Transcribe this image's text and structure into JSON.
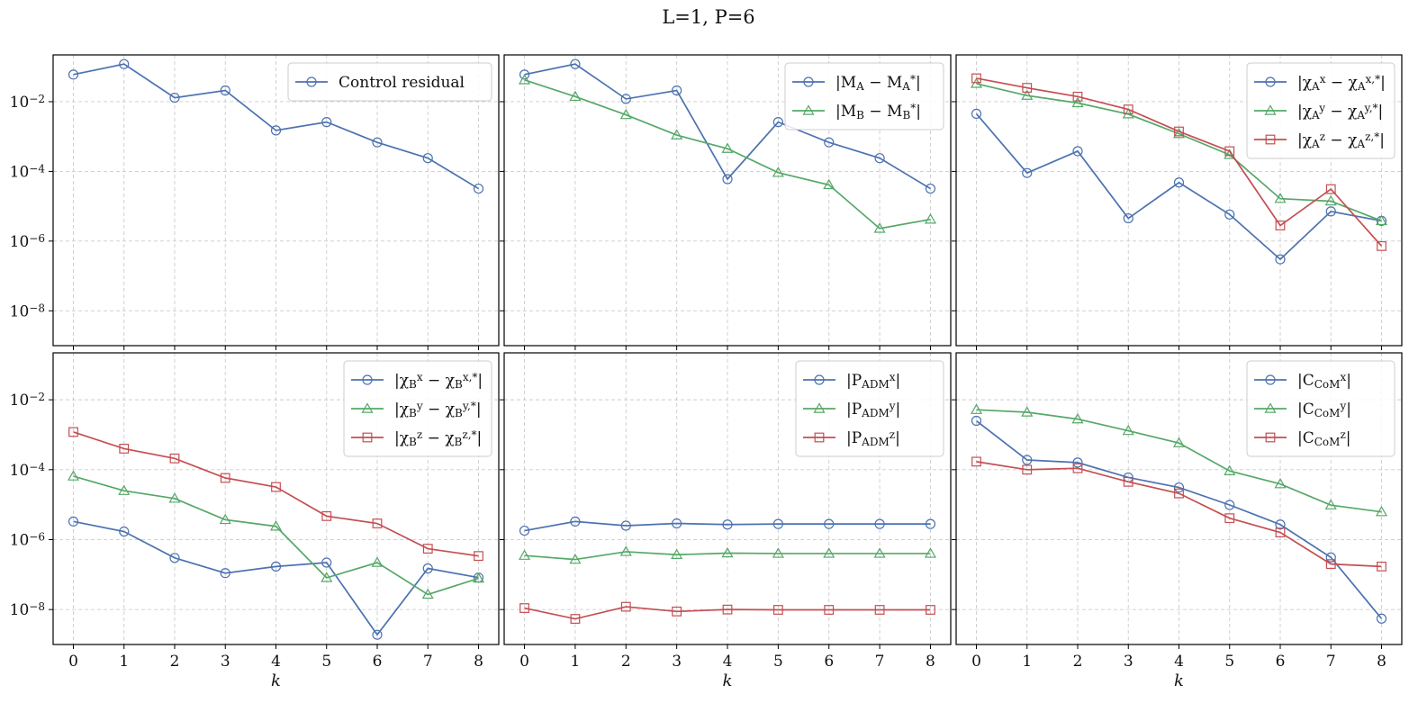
{
  "figure": {
    "title": "L=1, P=6"
  },
  "chart_data": [
    {
      "type": "line",
      "yscale": "log",
      "ylim": [
        1e-09,
        0.22
      ],
      "xlim": [
        -0.4,
        8.4
      ],
      "x": [
        0,
        1,
        2,
        3,
        4,
        5,
        6,
        7,
        8
      ],
      "xlabel": "",
      "xtick_labels": [],
      "ytick_labels": [
        "10^-2",
        "10^-4",
        "10^-6",
        "10^-8"
      ],
      "grid": true,
      "legend_position": "top-right",
      "series": [
        {
          "name": "Control residual",
          "color": "#4c72b0",
          "marker": "circle",
          "values": [
            0.06,
            0.12,
            0.013,
            0.021,
            0.0015,
            0.0026,
            0.00068,
            0.00024,
            3.2e-05
          ]
        }
      ]
    },
    {
      "type": "line",
      "yscale": "log",
      "ylim": [
        1e-09,
        0.22
      ],
      "xlim": [
        -0.4,
        8.4
      ],
      "x": [
        0,
        1,
        2,
        3,
        4,
        5,
        6,
        7,
        8
      ],
      "xlabel": "",
      "xtick_labels": [],
      "ytick_labels": [],
      "grid": true,
      "legend_position": "top-right",
      "series": [
        {
          "name": "|M_A − M_A^*|",
          "color": "#4c72b0",
          "marker": "circle",
          "values": [
            0.06,
            0.12,
            0.012,
            0.021,
            6e-05,
            0.0026,
            0.00068,
            0.00024,
            3.2e-05
          ]
        },
        {
          "name": "|M_B − M_B^*|",
          "color": "#55a868",
          "marker": "triangle",
          "values": [
            0.042,
            0.014,
            0.0042,
            0.0011,
            0.00045,
            9.2e-05,
            4.1e-05,
            2.3e-06,
            4.2e-06
          ]
        }
      ]
    },
    {
      "type": "line",
      "yscale": "log",
      "ylim": [
        1e-09,
        0.22
      ],
      "xlim": [
        -0.4,
        8.4
      ],
      "x": [
        0,
        1,
        2,
        3,
        4,
        5,
        6,
        7,
        8
      ],
      "xlabel": "",
      "xtick_labels": [],
      "ytick_labels": [],
      "grid": true,
      "legend_position": "top-right",
      "series": [
        {
          "name": "|χ_A^x − χ_A^{x,*}|",
          "color": "#4c72b0",
          "marker": "circle",
          "values": [
            0.0045,
            9e-05,
            0.00038,
            4.5e-06,
            4.8e-05,
            5.8e-06,
            3e-07,
            7.1e-06,
            3.8e-06
          ]
        },
        {
          "name": "|χ_A^y − χ_A^{y,*}|",
          "color": "#55a868",
          "marker": "triangle",
          "values": [
            0.033,
            0.015,
            0.0092,
            0.0044,
            0.0012,
            0.0003,
            1.65e-05,
            1.4e-05,
            3.8e-06
          ]
        },
        {
          "name": "|χ_A^z − χ_A^{z,*}|",
          "color": "#c44e52",
          "marker": "square",
          "values": [
            0.047,
            0.025,
            0.014,
            0.006,
            0.0014,
            0.00038,
            2.8e-06,
            3.1e-05,
            7.2e-07
          ]
        }
      ]
    },
    {
      "type": "line",
      "yscale": "log",
      "ylim": [
        1e-09,
        0.22
      ],
      "xlim": [
        -0.4,
        8.4
      ],
      "x": [
        0,
        1,
        2,
        3,
        4,
        5,
        6,
        7,
        8
      ],
      "xlabel": "k",
      "xtick_labels": [
        "0",
        "1",
        "2",
        "3",
        "4",
        "5",
        "6",
        "7",
        "8"
      ],
      "ytick_labels": [
        "10^-2",
        "10^-4",
        "10^-6",
        "10^-8"
      ],
      "grid": true,
      "legend_position": "top-right",
      "series": [
        {
          "name": "|χ_B^x − χ_B^{x,*}|",
          "color": "#4c72b0",
          "marker": "circle",
          "values": [
            3.3e-06,
            1.7e-06,
            3e-07,
            1.1e-07,
            1.7e-07,
            2.2e-07,
            1.9e-09,
            1.5e-07,
            8.2e-08
          ]
        },
        {
          "name": "|χ_B^y − χ_B^{y,*}|",
          "color": "#55a868",
          "marker": "triangle",
          "values": [
            6.5e-05,
            2.5e-05,
            1.5e-05,
            3.7e-06,
            2.4e-06,
            8.1e-08,
            2.2e-07,
            2.7e-08,
            7.8e-08
          ]
        },
        {
          "name": "|χ_B^z − χ_B^{z,*}|",
          "color": "#c44e52",
          "marker": "square",
          "values": [
            0.0012,
            0.0004,
            0.00021,
            5.8e-05,
            3.2e-05,
            4.7e-06,
            2.9e-06,
            5.5e-07,
            3.4e-07
          ]
        }
      ]
    },
    {
      "type": "line",
      "yscale": "log",
      "ylim": [
        1e-09,
        0.22
      ],
      "xlim": [
        -0.4,
        8.4
      ],
      "x": [
        0,
        1,
        2,
        3,
        4,
        5,
        6,
        7,
        8
      ],
      "xlabel": "k",
      "xtick_labels": [
        "0",
        "1",
        "2",
        "3",
        "4",
        "5",
        "6",
        "7",
        "8"
      ],
      "ytick_labels": [],
      "grid": true,
      "legend_position": "top-right",
      "series": [
        {
          "name": "|P_ADM^x|",
          "color": "#4c72b0",
          "marker": "circle",
          "values": [
            1.8e-06,
            3.3e-06,
            2.5e-06,
            2.9e-06,
            2.7e-06,
            2.8e-06,
            2.8e-06,
            2.8e-06,
            2.8e-06
          ]
        },
        {
          "name": "|P_ADM^y|",
          "color": "#55a868",
          "marker": "triangle",
          "values": [
            3.5e-07,
            2.7e-07,
            4.5e-07,
            3.7e-07,
            4.1e-07,
            4e-07,
            4e-07,
            4e-07,
            4e-07
          ]
        },
        {
          "name": "|P_ADM^z|",
          "color": "#c44e52",
          "marker": "square",
          "values": [
            1.1e-08,
            5.4e-09,
            1.2e-08,
            8.8e-09,
            1e-08,
            9.8e-09,
            9.8e-09,
            9.8e-09,
            9.8e-09
          ]
        }
      ]
    },
    {
      "type": "line",
      "yscale": "log",
      "ylim": [
        1e-09,
        0.22
      ],
      "xlim": [
        -0.4,
        8.4
      ],
      "x": [
        0,
        1,
        2,
        3,
        4,
        5,
        6,
        7,
        8
      ],
      "xlabel": "k",
      "xtick_labels": [
        "0",
        "1",
        "2",
        "3",
        "4",
        "5",
        "6",
        "7",
        "8"
      ],
      "ytick_labels": [],
      "grid": true,
      "legend_position": "top-right",
      "series": [
        {
          "name": "|C_CoM^x|",
          "color": "#4c72b0",
          "marker": "circle",
          "values": [
            0.0025,
            0.00019,
            0.00016,
            6e-05,
            3.1e-05,
            9.8e-06,
            2.7e-06,
            3.1e-07,
            5.5e-09
          ]
        },
        {
          "name": "|C_CoM^y|",
          "color": "#55a868",
          "marker": "triangle",
          "values": [
            0.0052,
            0.0044,
            0.0028,
            0.0013,
            0.00058,
            9.2e-05,
            3.9e-05,
            9.7e-06,
            6.2e-06
          ]
        },
        {
          "name": "|C_CoM^z|",
          "color": "#c44e52",
          "marker": "square",
          "values": [
            0.00017,
            0.0001,
            0.00011,
            4.5e-05,
            2.1e-05,
            4.1e-06,
            1.6e-06,
            2e-07,
            1.7e-07
          ]
        }
      ]
    }
  ]
}
